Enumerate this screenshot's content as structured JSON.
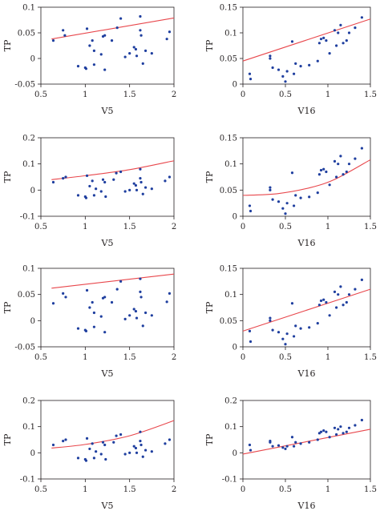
{
  "colors": {
    "points": "#1f3f9f",
    "fit": "#e8474c",
    "axis": "#231f20"
  },
  "chart_data": [
    {
      "panel": "row1-left",
      "type": "scatter",
      "xlabel": "V5",
      "ylabel": "TP",
      "xlim": [
        0.5,
        2
      ],
      "ylim": [
        -0.05,
        0.1
      ],
      "xticks": [
        "0.5",
        "1",
        "1.5",
        "2"
      ],
      "yticks": [
        "-0.05",
        "0",
        "0.05",
        "0.1"
      ],
      "fit": {
        "shape": "linear",
        "x": [
          0.62,
          2.0
        ],
        "y": [
          0.038,
          0.079
        ]
      },
      "points": [
        {
          "x": 0.64,
          "y": 0.035
        },
        {
          "x": 0.75,
          "y": 0.055
        },
        {
          "x": 0.77,
          "y": 0.045
        },
        {
          "x": 0.92,
          "y": -0.015
        },
        {
          "x": 1.0,
          "y": -0.018
        },
        {
          "x": 1.01,
          "y": -0.02
        },
        {
          "x": 1.02,
          "y": 0.058
        },
        {
          "x": 1.05,
          "y": 0.025
        },
        {
          "x": 1.08,
          "y": 0.035
        },
        {
          "x": 1.1,
          "y": -0.012
        },
        {
          "x": 1.1,
          "y": 0.015
        },
        {
          "x": 1.18,
          "y": 0.008
        },
        {
          "x": 1.2,
          "y": 0.043
        },
        {
          "x": 1.22,
          "y": 0.045
        },
        {
          "x": 1.22,
          "y": -0.022
        },
        {
          "x": 1.3,
          "y": 0.035
        },
        {
          "x": 1.36,
          "y": 0.06
        },
        {
          "x": 1.4,
          "y": 0.078
        },
        {
          "x": 1.45,
          "y": 0.003
        },
        {
          "x": 1.5,
          "y": 0.01
        },
        {
          "x": 1.55,
          "y": 0.022
        },
        {
          "x": 1.57,
          "y": 0.018
        },
        {
          "x": 1.58,
          "y": 0.005
        },
        {
          "x": 1.62,
          "y": 0.082
        },
        {
          "x": 1.62,
          "y": 0.055
        },
        {
          "x": 1.63,
          "y": 0.045
        },
        {
          "x": 1.65,
          "y": -0.01
        },
        {
          "x": 1.68,
          "y": 0.015
        },
        {
          "x": 1.75,
          "y": 0.01
        },
        {
          "x": 1.92,
          "y": 0.038
        },
        {
          "x": 1.95,
          "y": 0.052
        }
      ]
    },
    {
      "panel": "row1-right",
      "type": "scatter",
      "xlabel": "V16",
      "ylabel": "TP",
      "xlim": [
        0,
        1.5
      ],
      "ylim": [
        0,
        0.15
      ],
      "xticks": [
        "0",
        "0.5",
        "1",
        "1.5"
      ],
      "yticks": [
        "0",
        "0.05",
        "0.1",
        "0.15"
      ],
      "fit": {
        "shape": "linear",
        "x": [
          0.0,
          1.5
        ],
        "y": [
          0.045,
          0.127
        ]
      },
      "points": [
        {
          "x": 0.08,
          "y": 0.02
        },
        {
          "x": 0.09,
          "y": 0.01
        },
        {
          "x": 0.32,
          "y": 0.055
        },
        {
          "x": 0.32,
          "y": 0.05
        },
        {
          "x": 0.35,
          "y": 0.032
        },
        {
          "x": 0.42,
          "y": 0.028
        },
        {
          "x": 0.47,
          "y": 0.015
        },
        {
          "x": 0.5,
          "y": 0.005
        },
        {
          "x": 0.52,
          "y": 0.025
        },
        {
          "x": 0.58,
          "y": 0.083
        },
        {
          "x": 0.6,
          "y": 0.02
        },
        {
          "x": 0.62,
          "y": 0.04
        },
        {
          "x": 0.68,
          "y": 0.035
        },
        {
          "x": 0.78,
          "y": 0.037
        },
        {
          "x": 0.88,
          "y": 0.045
        },
        {
          "x": 0.9,
          "y": 0.08
        },
        {
          "x": 0.92,
          "y": 0.088
        },
        {
          "x": 0.95,
          "y": 0.09
        },
        {
          "x": 0.98,
          "y": 0.085
        },
        {
          "x": 1.02,
          "y": 0.06
        },
        {
          "x": 1.08,
          "y": 0.105
        },
        {
          "x": 1.1,
          "y": 0.075
        },
        {
          "x": 1.12,
          "y": 0.1
        },
        {
          "x": 1.15,
          "y": 0.115
        },
        {
          "x": 1.18,
          "y": 0.08
        },
        {
          "x": 1.22,
          "y": 0.085
        },
        {
          "x": 1.25,
          "y": 0.1
        },
        {
          "x": 1.32,
          "y": 0.11
        },
        {
          "x": 1.4,
          "y": 0.13
        }
      ]
    },
    {
      "panel": "row2-left",
      "type": "scatter",
      "xlabel": "V5",
      "ylabel": "TP",
      "xlim": [
        0.5,
        2
      ],
      "ylim": [
        -0.1,
        0.2
      ],
      "xticks": [
        "0.5",
        "1",
        "1.5",
        "2"
      ],
      "yticks": [
        "-0.1",
        "0",
        "0.1",
        "0.2"
      ],
      "fit": {
        "shape": "curve",
        "x": [
          0.62,
          1.0,
          1.5,
          2.0
        ],
        "y": [
          0.04,
          0.055,
          0.078,
          0.112
        ]
      },
      "points": [
        {
          "x": 0.64,
          "y": 0.03
        },
        {
          "x": 0.75,
          "y": 0.045
        },
        {
          "x": 0.78,
          "y": 0.05
        },
        {
          "x": 0.92,
          "y": -0.02
        },
        {
          "x": 1.0,
          "y": -0.025
        },
        {
          "x": 1.01,
          "y": -0.03
        },
        {
          "x": 1.02,
          "y": 0.055
        },
        {
          "x": 1.05,
          "y": 0.015
        },
        {
          "x": 1.08,
          "y": 0.035
        },
        {
          "x": 1.1,
          "y": -0.02
        },
        {
          "x": 1.12,
          "y": 0.005
        },
        {
          "x": 1.18,
          "y": -0.005
        },
        {
          "x": 1.2,
          "y": 0.04
        },
        {
          "x": 1.22,
          "y": 0.03
        },
        {
          "x": 1.23,
          "y": -0.025
        },
        {
          "x": 1.32,
          "y": 0.04
        },
        {
          "x": 1.35,
          "y": 0.065
        },
        {
          "x": 1.4,
          "y": 0.07
        },
        {
          "x": 1.45,
          "y": -0.005
        },
        {
          "x": 1.5,
          "y": 0.0
        },
        {
          "x": 1.55,
          "y": 0.025
        },
        {
          "x": 1.57,
          "y": 0.018
        },
        {
          "x": 1.58,
          "y": 0.0
        },
        {
          "x": 1.62,
          "y": 0.08
        },
        {
          "x": 1.62,
          "y": 0.045
        },
        {
          "x": 1.63,
          "y": 0.03
        },
        {
          "x": 1.65,
          "y": -0.015
        },
        {
          "x": 1.68,
          "y": 0.01
        },
        {
          "x": 1.75,
          "y": 0.005
        },
        {
          "x": 1.9,
          "y": 0.035
        },
        {
          "x": 1.95,
          "y": 0.05
        }
      ]
    },
    {
      "panel": "row2-right",
      "type": "scatter",
      "xlabel": "V16",
      "ylabel": "TP",
      "xlim": [
        0,
        1.5
      ],
      "ylim": [
        0,
        0.15
      ],
      "xticks": [
        "0",
        "0.5",
        "1",
        "1.5"
      ],
      "yticks": [
        "0",
        "0.05",
        "0.1",
        "0.15"
      ],
      "fit": {
        "shape": "curve",
        "x": [
          0.0,
          0.4,
          0.8,
          1.1,
          1.5
        ],
        "y": [
          0.04,
          0.043,
          0.055,
          0.072,
          0.108
        ]
      },
      "points": [
        {
          "x": 0.08,
          "y": 0.02
        },
        {
          "x": 0.09,
          "y": 0.01
        },
        {
          "x": 0.32,
          "y": 0.055
        },
        {
          "x": 0.32,
          "y": 0.05
        },
        {
          "x": 0.35,
          "y": 0.032
        },
        {
          "x": 0.42,
          "y": 0.028
        },
        {
          "x": 0.47,
          "y": 0.015
        },
        {
          "x": 0.5,
          "y": 0.005
        },
        {
          "x": 0.52,
          "y": 0.025
        },
        {
          "x": 0.58,
          "y": 0.083
        },
        {
          "x": 0.6,
          "y": 0.02
        },
        {
          "x": 0.62,
          "y": 0.04
        },
        {
          "x": 0.68,
          "y": 0.035
        },
        {
          "x": 0.78,
          "y": 0.037
        },
        {
          "x": 0.88,
          "y": 0.045
        },
        {
          "x": 0.9,
          "y": 0.08
        },
        {
          "x": 0.92,
          "y": 0.088
        },
        {
          "x": 0.95,
          "y": 0.09
        },
        {
          "x": 0.98,
          "y": 0.085
        },
        {
          "x": 1.02,
          "y": 0.06
        },
        {
          "x": 1.08,
          "y": 0.105
        },
        {
          "x": 1.1,
          "y": 0.075
        },
        {
          "x": 1.12,
          "y": 0.1
        },
        {
          "x": 1.15,
          "y": 0.115
        },
        {
          "x": 1.18,
          "y": 0.08
        },
        {
          "x": 1.22,
          "y": 0.085
        },
        {
          "x": 1.25,
          "y": 0.1
        },
        {
          "x": 1.32,
          "y": 0.11
        },
        {
          "x": 1.4,
          "y": 0.13
        }
      ]
    },
    {
      "panel": "row3-left",
      "type": "scatter",
      "xlabel": "V5",
      "ylabel": "TP",
      "xlim": [
        0.5,
        2
      ],
      "ylim": [
        -0.05,
        0.1
      ],
      "xticks": [
        "0.5",
        "1",
        "1.5",
        "2"
      ],
      "yticks": [
        "-0.05",
        "0",
        "0.05",
        "0.1"
      ],
      "fit": {
        "shape": "linear",
        "x": [
          0.62,
          2.0
        ],
        "y": [
          0.062,
          0.089
        ]
      },
      "points": [
        {
          "x": 0.64,
          "y": 0.033
        },
        {
          "x": 0.75,
          "y": 0.052
        },
        {
          "x": 0.78,
          "y": 0.045
        },
        {
          "x": 0.92,
          "y": -0.015
        },
        {
          "x": 1.0,
          "y": -0.018
        },
        {
          "x": 1.01,
          "y": -0.02
        },
        {
          "x": 1.02,
          "y": 0.058
        },
        {
          "x": 1.05,
          "y": 0.025
        },
        {
          "x": 1.08,
          "y": 0.035
        },
        {
          "x": 1.1,
          "y": -0.012
        },
        {
          "x": 1.1,
          "y": 0.015
        },
        {
          "x": 1.18,
          "y": 0.008
        },
        {
          "x": 1.2,
          "y": 0.043
        },
        {
          "x": 1.22,
          "y": 0.045
        },
        {
          "x": 1.22,
          "y": -0.022
        },
        {
          "x": 1.3,
          "y": 0.035
        },
        {
          "x": 1.36,
          "y": 0.06
        },
        {
          "x": 1.4,
          "y": 0.075
        },
        {
          "x": 1.45,
          "y": 0.003
        },
        {
          "x": 1.5,
          "y": 0.01
        },
        {
          "x": 1.55,
          "y": 0.022
        },
        {
          "x": 1.57,
          "y": 0.018
        },
        {
          "x": 1.58,
          "y": 0.005
        },
        {
          "x": 1.62,
          "y": 0.08
        },
        {
          "x": 1.62,
          "y": 0.055
        },
        {
          "x": 1.63,
          "y": 0.045
        },
        {
          "x": 1.65,
          "y": -0.01
        },
        {
          "x": 1.68,
          "y": 0.015
        },
        {
          "x": 1.75,
          "y": 0.01
        },
        {
          "x": 1.92,
          "y": 0.036
        },
        {
          "x": 1.95,
          "y": 0.052
        }
      ]
    },
    {
      "panel": "row3-right",
      "type": "scatter",
      "xlabel": "V16",
      "ylabel": "TP",
      "xlim": [
        0,
        1.5
      ],
      "ylim": [
        0,
        0.15
      ],
      "xticks": [
        "0",
        "0.5",
        "1",
        "1.5"
      ],
      "yticks": [
        "0",
        "0.05",
        "0.1",
        "0.15"
      ],
      "fit": {
        "shape": "linear",
        "x": [
          0.0,
          1.5
        ],
        "y": [
          0.03,
          0.11
        ]
      },
      "points": [
        {
          "x": 0.08,
          "y": 0.03
        },
        {
          "x": 0.09,
          "y": 0.01
        },
        {
          "x": 0.32,
          "y": 0.055
        },
        {
          "x": 0.32,
          "y": 0.05
        },
        {
          "x": 0.35,
          "y": 0.032
        },
        {
          "x": 0.42,
          "y": 0.028
        },
        {
          "x": 0.47,
          "y": 0.015
        },
        {
          "x": 0.5,
          "y": 0.005
        },
        {
          "x": 0.52,
          "y": 0.025
        },
        {
          "x": 0.58,
          "y": 0.083
        },
        {
          "x": 0.6,
          "y": 0.02
        },
        {
          "x": 0.62,
          "y": 0.04
        },
        {
          "x": 0.68,
          "y": 0.035
        },
        {
          "x": 0.78,
          "y": 0.037
        },
        {
          "x": 0.88,
          "y": 0.045
        },
        {
          "x": 0.9,
          "y": 0.08
        },
        {
          "x": 0.92,
          "y": 0.088
        },
        {
          "x": 0.95,
          "y": 0.09
        },
        {
          "x": 0.98,
          "y": 0.085
        },
        {
          "x": 1.02,
          "y": 0.06
        },
        {
          "x": 1.08,
          "y": 0.105
        },
        {
          "x": 1.1,
          "y": 0.075
        },
        {
          "x": 1.12,
          "y": 0.1
        },
        {
          "x": 1.15,
          "y": 0.115
        },
        {
          "x": 1.18,
          "y": 0.08
        },
        {
          "x": 1.22,
          "y": 0.085
        },
        {
          "x": 1.25,
          "y": 0.1
        },
        {
          "x": 1.32,
          "y": 0.11
        },
        {
          "x": 1.4,
          "y": 0.128
        }
      ]
    },
    {
      "panel": "row4-left",
      "type": "scatter",
      "xlabel": "V5",
      "ylabel": "TP",
      "xlim": [
        0.5,
        2
      ],
      "ylim": [
        -0.1,
        0.2
      ],
      "xticks": [
        "0.5",
        "1",
        "1.5",
        "2"
      ],
      "yticks": [
        "-0.1",
        "0",
        "0.1",
        "0.2"
      ],
      "fit": {
        "shape": "curve",
        "x": [
          0.62,
          1.0,
          1.5,
          2.0
        ],
        "y": [
          0.018,
          0.032,
          0.065,
          0.123
        ]
      },
      "points": [
        {
          "x": 0.64,
          "y": 0.03
        },
        {
          "x": 0.75,
          "y": 0.045
        },
        {
          "x": 0.78,
          "y": 0.05
        },
        {
          "x": 0.92,
          "y": -0.02
        },
        {
          "x": 1.0,
          "y": -0.025
        },
        {
          "x": 1.01,
          "y": -0.03
        },
        {
          "x": 1.02,
          "y": 0.055
        },
        {
          "x": 1.05,
          "y": 0.015
        },
        {
          "x": 1.08,
          "y": 0.035
        },
        {
          "x": 1.1,
          "y": -0.02
        },
        {
          "x": 1.12,
          "y": 0.005
        },
        {
          "x": 1.18,
          "y": -0.005
        },
        {
          "x": 1.2,
          "y": 0.04
        },
        {
          "x": 1.22,
          "y": 0.03
        },
        {
          "x": 1.23,
          "y": -0.025
        },
        {
          "x": 1.32,
          "y": 0.04
        },
        {
          "x": 1.35,
          "y": 0.065
        },
        {
          "x": 1.4,
          "y": 0.07
        },
        {
          "x": 1.45,
          "y": -0.005
        },
        {
          "x": 1.5,
          "y": 0.0
        },
        {
          "x": 1.55,
          "y": 0.025
        },
        {
          "x": 1.57,
          "y": 0.018
        },
        {
          "x": 1.58,
          "y": 0.0
        },
        {
          "x": 1.62,
          "y": 0.08
        },
        {
          "x": 1.62,
          "y": 0.045
        },
        {
          "x": 1.63,
          "y": 0.03
        },
        {
          "x": 1.65,
          "y": -0.015
        },
        {
          "x": 1.68,
          "y": 0.01
        },
        {
          "x": 1.75,
          "y": 0.005
        },
        {
          "x": 1.9,
          "y": 0.035
        },
        {
          "x": 1.95,
          "y": 0.05
        }
      ]
    },
    {
      "panel": "row4-right",
      "type": "scatter",
      "xlabel": "V16",
      "ylabel": "TP",
      "xlim": [
        0,
        1.5
      ],
      "ylim": [
        -0.1,
        0.2
      ],
      "xticks": [
        "0",
        "0.5",
        "1",
        "1.5"
      ],
      "yticks": [
        "-0.1",
        "0",
        "0.1",
        "0.2"
      ],
      "fit": {
        "shape": "linear",
        "x": [
          0.0,
          1.5
        ],
        "y": [
          -0.005,
          0.09
        ]
      },
      "points": [
        {
          "x": 0.08,
          "y": 0.03
        },
        {
          "x": 0.09,
          "y": 0.01
        },
        {
          "x": 0.32,
          "y": 0.045
        },
        {
          "x": 0.32,
          "y": 0.04
        },
        {
          "x": 0.35,
          "y": 0.025
        },
        {
          "x": 0.42,
          "y": 0.028
        },
        {
          "x": 0.47,
          "y": 0.02
        },
        {
          "x": 0.5,
          "y": 0.015
        },
        {
          "x": 0.52,
          "y": 0.025
        },
        {
          "x": 0.58,
          "y": 0.06
        },
        {
          "x": 0.6,
          "y": 0.025
        },
        {
          "x": 0.62,
          "y": 0.04
        },
        {
          "x": 0.68,
          "y": 0.035
        },
        {
          "x": 0.78,
          "y": 0.04
        },
        {
          "x": 0.88,
          "y": 0.05
        },
        {
          "x": 0.9,
          "y": 0.075
        },
        {
          "x": 0.92,
          "y": 0.08
        },
        {
          "x": 0.95,
          "y": 0.085
        },
        {
          "x": 0.98,
          "y": 0.08
        },
        {
          "x": 1.02,
          "y": 0.06
        },
        {
          "x": 1.08,
          "y": 0.095
        },
        {
          "x": 1.1,
          "y": 0.07
        },
        {
          "x": 1.12,
          "y": 0.09
        },
        {
          "x": 1.15,
          "y": 0.1
        },
        {
          "x": 1.18,
          "y": 0.075
        },
        {
          "x": 1.22,
          "y": 0.08
        },
        {
          "x": 1.25,
          "y": 0.095
        },
        {
          "x": 1.32,
          "y": 0.105
        },
        {
          "x": 1.4,
          "y": 0.125
        }
      ]
    }
  ]
}
